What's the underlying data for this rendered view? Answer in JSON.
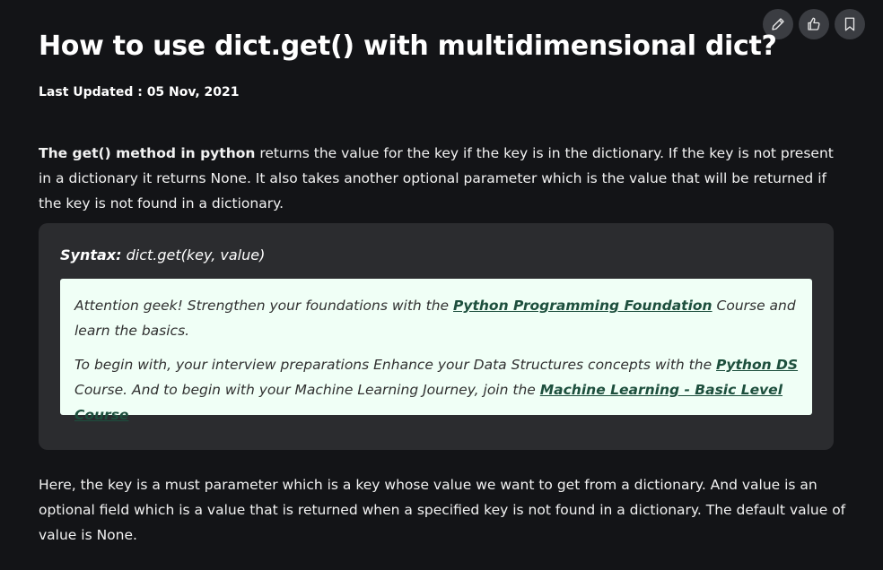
{
  "toolbar": {
    "edit_icon": "pencil-icon",
    "like_icon": "thumbs-up-icon",
    "bookmark_icon": "bookmark-icon"
  },
  "article": {
    "title": "How to use dict.get() with multidimensional dict?",
    "last_updated_label": "Last Updated : ",
    "last_updated_date": "05 Nov, 2021",
    "intro_bold": "The get() method in python",
    "intro_rest": " returns the value for the key if the key is in the dictionary. If the key is not present in a dictionary it returns None. It also takes another optional parameter which is the value that will be returned if the key is not found in a dictionary.",
    "syntax_label": "Syntax:",
    "syntax_code": " dict.get(key, value)",
    "geek_line1_pre": " Attention geek! Strengthen your foundations with the ",
    "geek_line1_link": "Python Programming Foundation",
    "geek_line1_post": " Course and learn the basics.",
    "geek_line2_pre": "To begin with, your interview preparations Enhance your Data Structures concepts with the ",
    "geek_line2_link1": "Python DS",
    "geek_line2_mid": " Course. And to begin with your Machine Learning Journey, join the ",
    "geek_line2_link2": "Machine Learning - Basic Level Course",
    "explanation": "Here, the key is a must parameter which is a key whose value we want to get from a dictionary. And value is an optional field which is a value that is returned when a specified key is not found in a dictionary. The default value of value is None."
  },
  "colors": {
    "background": "#131417",
    "syntax_box": "#2b2c2f",
    "notice_box": "#f0fff6",
    "link": "#1d4f3d"
  }
}
